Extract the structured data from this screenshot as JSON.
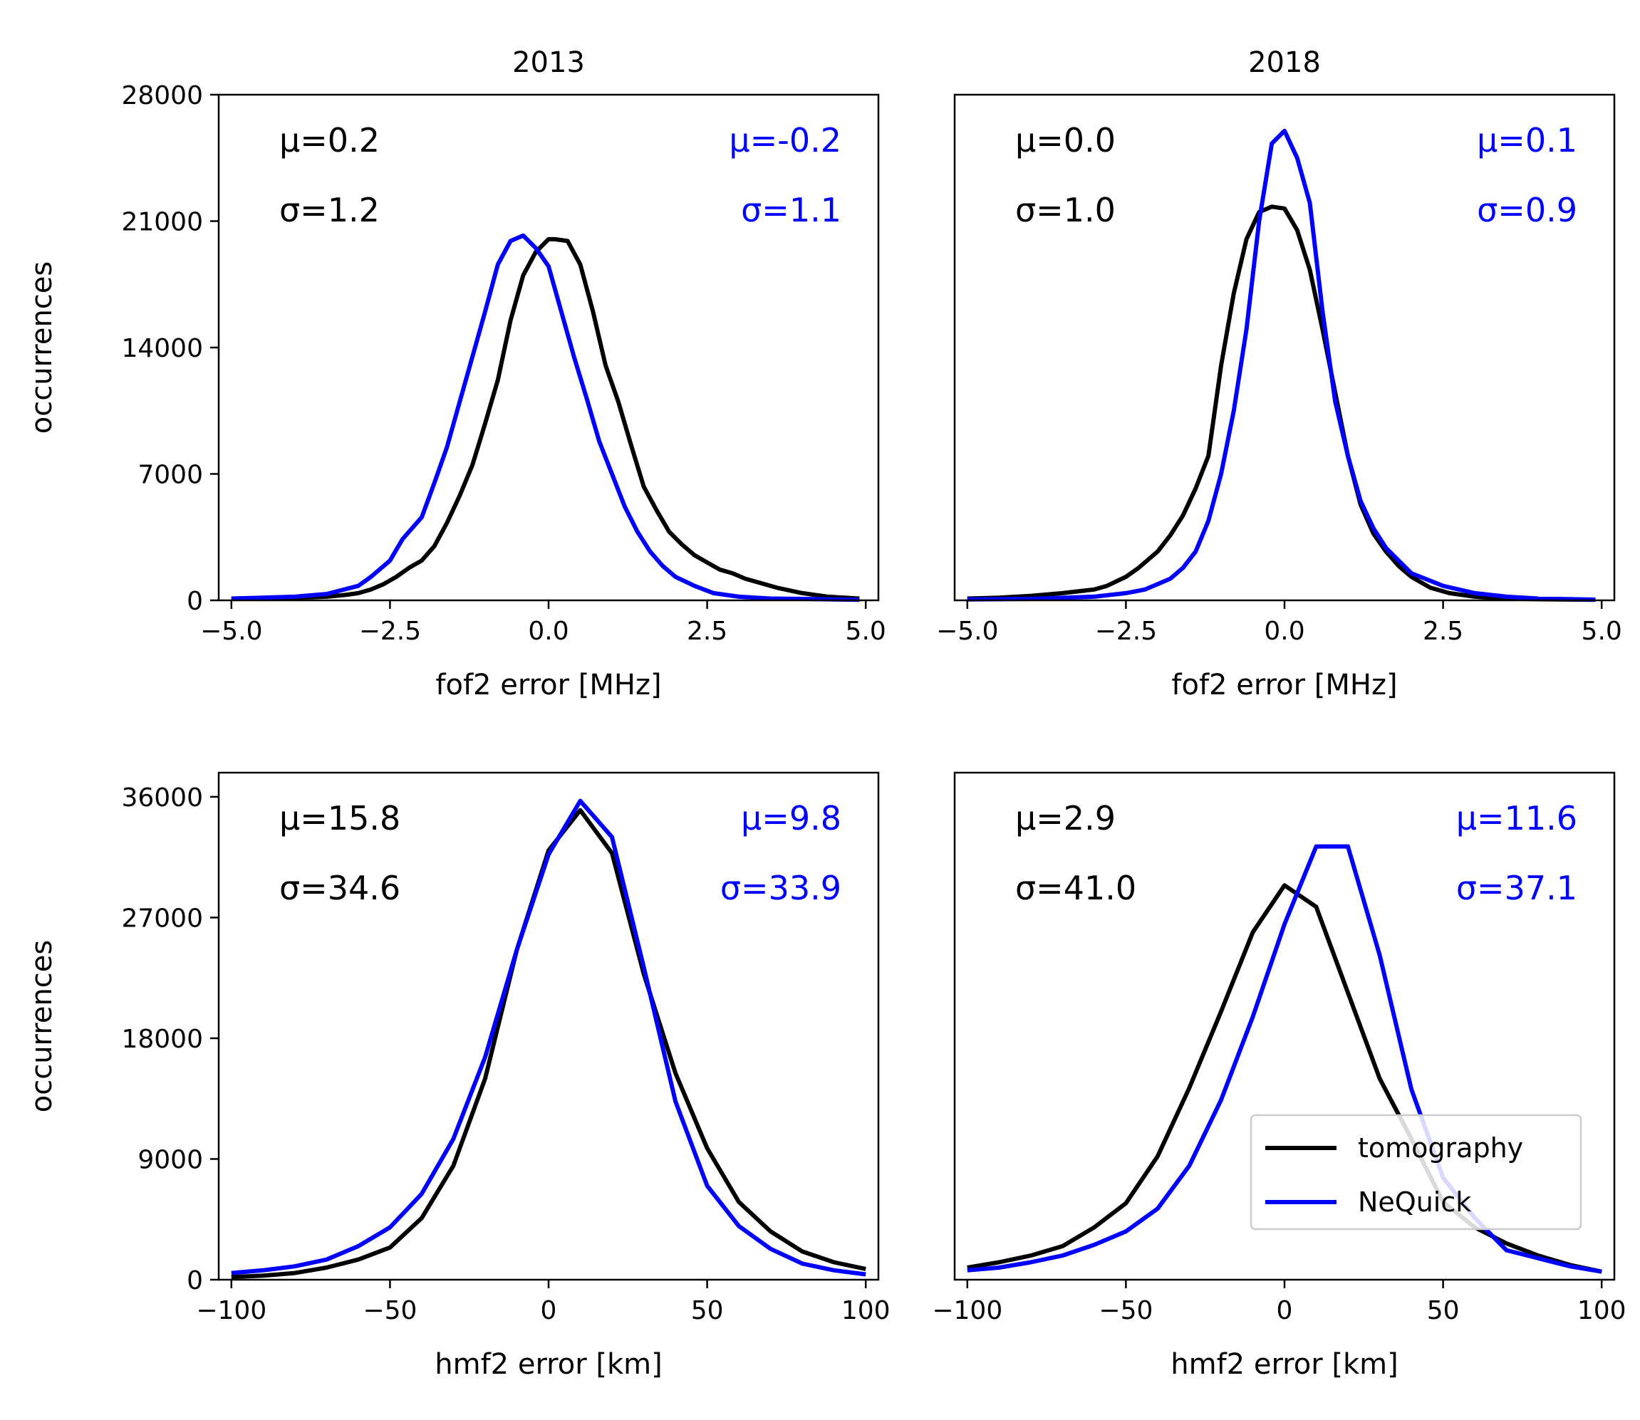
{
  "colors": {
    "tomography": "#000000",
    "nequick": "#0000ff",
    "axes": "#000000",
    "background": "#ffffff"
  },
  "legend": {
    "location": "lower-right",
    "panel": "2018-hmf2",
    "entries": [
      "tomography",
      "NeQuick"
    ]
  },
  "chart_data": [
    {
      "id": "2013-fof2",
      "type": "line",
      "title": "2013",
      "xlabel": "fof2 error [MHz]",
      "ylabel": "occurrences",
      "xlim": [
        -5.2,
        5.2
      ],
      "ylim": [
        0,
        28000
      ],
      "xticks": [
        -5.0,
        -2.5,
        0.0,
        2.5,
        5.0
      ],
      "xtick_labels": [
        "−5.0",
        "−2.5",
        "0.0",
        "2.5",
        "5.0"
      ],
      "yticks": [
        0,
        7000,
        14000,
        21000,
        28000
      ],
      "ytick_labels": [
        "0",
        "7000",
        "14000",
        "21000",
        "28000"
      ],
      "stats": {
        "tomography": [
          "μ=0.2",
          "σ=1.2"
        ],
        "nequick": [
          "μ=-0.2",
          "σ=1.1"
        ]
      },
      "series": [
        {
          "name": "tomography",
          "key": "tomography",
          "x": [
            -5.0,
            -4.6,
            -4.0,
            -3.5,
            -3.2,
            -3.0,
            -2.8,
            -2.6,
            -2.4,
            -2.2,
            -2.0,
            -1.8,
            -1.6,
            -1.4,
            -1.2,
            -1.0,
            -0.8,
            -0.6,
            -0.4,
            -0.2,
            0.0,
            0.1,
            0.3,
            0.5,
            0.7,
            0.9,
            1.1,
            1.3,
            1.5,
            1.7,
            1.9,
            2.1,
            2.3,
            2.5,
            2.7,
            2.9,
            3.1,
            3.3,
            3.6,
            4.0,
            4.4,
            4.9
          ],
          "values": [
            100,
            120,
            150,
            200,
            300,
            400,
            600,
            900,
            1300,
            1800,
            2200,
            3000,
            4300,
            5800,
            7500,
            9800,
            12200,
            15500,
            18000,
            19300,
            20000,
            20000,
            19900,
            18600,
            16000,
            13000,
            11000,
            8600,
            6300,
            5000,
            3800,
            3100,
            2500,
            2100,
            1700,
            1500,
            1200,
            1000,
            700,
            400,
            200,
            100
          ]
        },
        {
          "name": "NeQuick",
          "key": "nequick",
          "x": [
            -5.0,
            -4.5,
            -4.0,
            -3.5,
            -3.0,
            -2.8,
            -2.5,
            -2.3,
            -2.0,
            -1.8,
            -1.6,
            -1.4,
            -1.2,
            -1.0,
            -0.8,
            -0.6,
            -0.4,
            -0.2,
            0.0,
            0.2,
            0.4,
            0.6,
            0.8,
            1.0,
            1.2,
            1.4,
            1.6,
            1.8,
            2.0,
            2.3,
            2.6,
            3.0,
            3.5,
            4.0,
            4.5,
            4.9
          ],
          "values": [
            100,
            150,
            200,
            350,
            800,
            1300,
            2200,
            3400,
            4600,
            6500,
            8500,
            11000,
            13500,
            16000,
            18600,
            19900,
            20200,
            19500,
            18500,
            16000,
            13500,
            11200,
            8800,
            7000,
            5200,
            3800,
            2700,
            1900,
            1300,
            800,
            400,
            200,
            100,
            80,
            50,
            30
          ]
        }
      ]
    },
    {
      "id": "2018-fof2",
      "type": "line",
      "title": "2018",
      "xlabel": "fof2 error [MHz]",
      "ylabel": "",
      "xlim": [
        -5.2,
        5.2
      ],
      "ylim": [
        0,
        28000
      ],
      "xticks": [
        -5.0,
        -2.5,
        0.0,
        2.5,
        5.0
      ],
      "xtick_labels": [
        "−5.0",
        "−2.5",
        "0.0",
        "2.5",
        "5.0"
      ],
      "stats": {
        "tomography": [
          "μ=0.0",
          "σ=1.0"
        ],
        "nequick": [
          "μ=0.1",
          "σ=0.9"
        ]
      },
      "series": [
        {
          "name": "tomography",
          "key": "tomography",
          "x": [
            -5.0,
            -4.5,
            -4.0,
            -3.5,
            -3.0,
            -2.8,
            -2.5,
            -2.3,
            -2.0,
            -1.8,
            -1.6,
            -1.4,
            -1.2,
            -1.0,
            -0.8,
            -0.6,
            -0.4,
            -0.2,
            0.0,
            0.2,
            0.4,
            0.6,
            0.8,
            1.0,
            1.2,
            1.4,
            1.6,
            1.8,
            2.0,
            2.3,
            2.6,
            3.0,
            3.5,
            4.0,
            4.9
          ],
          "values": [
            100,
            150,
            250,
            400,
            600,
            800,
            1300,
            1800,
            2700,
            3600,
            4700,
            6200,
            8000,
            13000,
            17000,
            20000,
            21500,
            21800,
            21700,
            20500,
            18300,
            15000,
            11500,
            8000,
            5300,
            3700,
            2700,
            1900,
            1300,
            700,
            400,
            200,
            100,
            60,
            30
          ]
        },
        {
          "name": "NeQuick",
          "key": "nequick",
          "x": [
            -5.0,
            -4.0,
            -3.0,
            -2.5,
            -2.2,
            -2.0,
            -1.8,
            -1.6,
            -1.4,
            -1.2,
            -1.0,
            -0.8,
            -0.6,
            -0.4,
            -0.2,
            0.0,
            0.2,
            0.4,
            0.6,
            0.8,
            1.0,
            1.2,
            1.4,
            1.6,
            1.8,
            2.0,
            2.5,
            3.0,
            3.5,
            4.0,
            4.9
          ],
          "values": [
            50,
            80,
            200,
            400,
            600,
            900,
            1200,
            1800,
            2700,
            4400,
            7000,
            10500,
            15000,
            21000,
            25300,
            26000,
            24500,
            22000,
            16000,
            11000,
            8000,
            5500,
            4000,
            2900,
            2200,
            1500,
            800,
            400,
            200,
            100,
            40
          ]
        }
      ]
    },
    {
      "id": "2013-hmf2",
      "type": "line",
      "title": "",
      "xlabel": "hmf2 error [km]",
      "ylabel": "occurrences",
      "xlim": [
        -104,
        104
      ],
      "ylim": [
        0,
        37800
      ],
      "xticks": [
        -100,
        -50,
        0,
        50,
        100
      ],
      "xtick_labels": [
        "−100",
        "−50",
        "0",
        "50",
        "100"
      ],
      "yticks": [
        0,
        9000,
        18000,
        27000,
        36000
      ],
      "ytick_labels": [
        "0",
        "9000",
        "18000",
        "27000",
        "36000"
      ],
      "stats": {
        "tomography": [
          "μ=15.8",
          "σ=34.6"
        ],
        "nequick": [
          "μ=9.8",
          "σ=33.9"
        ]
      },
      "series": [
        {
          "name": "tomography",
          "key": "tomography",
          "x": [
            -100,
            -90,
            -80,
            -70,
            -60,
            -50,
            -40,
            -30,
            -20,
            -10,
            0,
            10,
            20,
            30,
            40,
            50,
            60,
            70,
            80,
            90,
            100
          ],
          "values": [
            200,
            300,
            500,
            900,
            1500,
            2400,
            4600,
            8500,
            15000,
            24600,
            32000,
            35000,
            31800,
            22800,
            15400,
            9800,
            5800,
            3600,
            2100,
            1300,
            800
          ]
        },
        {
          "name": "NeQuick",
          "key": "nequick",
          "x": [
            -100,
            -90,
            -80,
            -70,
            -60,
            -50,
            -40,
            -30,
            -20,
            -10,
            0,
            10,
            20,
            30,
            40,
            50,
            60,
            70,
            80,
            90,
            100
          ],
          "values": [
            500,
            700,
            1000,
            1500,
            2500,
            3900,
            6400,
            10500,
            16600,
            24600,
            31700,
            35700,
            33000,
            23300,
            13300,
            7000,
            4000,
            2300,
            1200,
            700,
            400
          ]
        }
      ]
    },
    {
      "id": "2018-hmf2",
      "type": "line",
      "title": "",
      "xlabel": "hmf2 error [km]",
      "ylabel": "",
      "xlim": [
        -104,
        104
      ],
      "ylim": [
        0,
        37800
      ],
      "xticks": [
        -100,
        -50,
        0,
        50,
        100
      ],
      "xtick_labels": [
        "−100",
        "−50",
        "0",
        "50",
        "100"
      ],
      "stats": {
        "tomography": [
          "μ=2.9",
          "σ=41.0"
        ],
        "nequick": [
          "μ=11.6",
          "σ=37.1"
        ]
      },
      "series": [
        {
          "name": "tomography",
          "key": "tomography",
          "x": [
            -100,
            -90,
            -80,
            -70,
            -60,
            -50,
            -40,
            -30,
            -20,
            -10,
            0,
            10,
            20,
            30,
            40,
            50,
            60,
            70,
            80,
            90,
            100
          ],
          "values": [
            900,
            1300,
            1800,
            2500,
            3900,
            5700,
            9200,
            14300,
            20000,
            25900,
            29400,
            27800,
            21400,
            15000,
            10500,
            5800,
            3900,
            2700,
            1800,
            1100,
            600
          ]
        },
        {
          "name": "NeQuick",
          "key": "nequick",
          "x": [
            -100,
            -90,
            -80,
            -70,
            -60,
            -50,
            -40,
            -30,
            -20,
            -10,
            0,
            10,
            20,
            30,
            40,
            50,
            60,
            70,
            80,
            90,
            100
          ],
          "values": [
            700,
            900,
            1300,
            1800,
            2600,
            3600,
            5300,
            8500,
            13400,
            19600,
            26500,
            32300,
            32300,
            24200,
            14200,
            7600,
            4600,
            2200,
            1600,
            1000,
            600
          ]
        }
      ]
    }
  ]
}
